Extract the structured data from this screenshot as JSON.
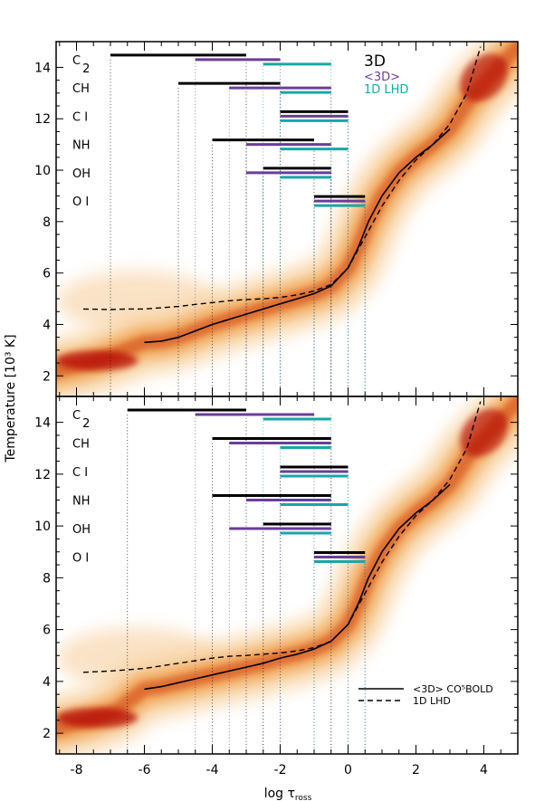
{
  "chart_data": {
    "type": "line",
    "xlabel": "log τ",
    "xlabel_sub": "ross",
    "ylabel": "Temperature [10³ K]",
    "xlim": [
      -8.6,
      5.0
    ],
    "ylim": [
      1.2,
      15.0
    ],
    "x_ticks": [
      -8,
      -6,
      -4,
      -2,
      0,
      2,
      4
    ],
    "y_ticks": [
      2,
      4,
      6,
      8,
      10,
      12,
      14
    ],
    "colors": {
      "3D": "#000000",
      "<3D>": "#6a3d9a",
      "1D LHD": "#1aa6a6",
      "density": "#b00000"
    },
    "panels": [
      {
        "id": "top",
        "legend": [
          "3D",
          "<3D>",
          "1D LHD"
        ],
        "species": [
          {
            "label": "C",
            "sub": "2",
            "y": 14.3,
            "ranges": [
              {
                "model": "3D",
                "x": [
                  -7.0,
                  -3.0
                ]
              },
              {
                "model": "<3D>",
                "x": [
                  -4.5,
                  -2.0
                ]
              },
              {
                "model": "1D LHD",
                "x": [
                  -2.5,
                  -0.5
                ]
              }
            ]
          },
          {
            "label": "CH",
            "sub": "",
            "y": 13.2,
            "ranges": [
              {
                "model": "3D",
                "x": [
                  -5.0,
                  -2.0
                ]
              },
              {
                "model": "<3D>",
                "x": [
                  -3.5,
                  -0.5
                ]
              },
              {
                "model": "1D LHD",
                "x": [
                  -2.0,
                  -0.5
                ]
              }
            ]
          },
          {
            "label": "C I",
            "sub": "",
            "y": 12.1,
            "ranges": [
              {
                "model": "3D",
                "x": [
                  -2.0,
                  0.0
                ]
              },
              {
                "model": "<3D>",
                "x": [
                  -2.0,
                  0.0
                ]
              },
              {
                "model": "1D LHD",
                "x": [
                  -2.0,
                  0.0
                ]
              }
            ]
          },
          {
            "label": "NH",
            "sub": "",
            "y": 11.0,
            "ranges": [
              {
                "model": "3D",
                "x": [
                  -4.0,
                  -1.0
                ]
              },
              {
                "model": "<3D>",
                "x": [
                  -3.0,
                  -0.5
                ]
              },
              {
                "model": "1D LHD",
                "x": [
                  -2.0,
                  0.0
                ]
              }
            ]
          },
          {
            "label": "OH",
            "sub": "",
            "y": 9.9,
            "ranges": [
              {
                "model": "3D",
                "x": [
                  -2.5,
                  -0.5
                ]
              },
              {
                "model": "<3D>",
                "x": [
                  -3.0,
                  -0.5
                ]
              },
              {
                "model": "1D LHD",
                "x": [
                  -2.0,
                  -0.5
                ]
              }
            ]
          },
          {
            "label": "O I",
            "sub": "",
            "y": 8.8,
            "ranges": [
              {
                "model": "3D",
                "x": [
                  -1.0,
                  0.5
                ]
              },
              {
                "model": "<3D>",
                "x": [
                  -1.0,
                  0.5
                ]
              },
              {
                "model": "1D LHD",
                "x": [
                  -1.0,
                  0.5
                ]
              }
            ]
          }
        ],
        "mean_3d": {
          "x": [
            -6,
            -5.5,
            -5,
            -4.5,
            -4,
            -3.5,
            -3,
            -2.5,
            -2,
            -1.5,
            -1,
            -0.5,
            0,
            0.3,
            0.6,
            1.0,
            1.5,
            2.0,
            2.5,
            3.0
          ],
          "y": [
            3.3,
            3.35,
            3.5,
            3.75,
            4.0,
            4.2,
            4.4,
            4.6,
            4.8,
            5.0,
            5.2,
            5.5,
            6.2,
            7.0,
            8.0,
            9.0,
            9.9,
            10.5,
            11.0,
            11.6
          ]
        },
        "lhd_1d": {
          "x": [
            -7.8,
            -7,
            -6.5,
            -6,
            -5.5,
            -5,
            -4.5,
            -4,
            -3.5,
            -3,
            -2.5,
            -2,
            -1.5,
            -1,
            -0.5,
            0,
            0.5,
            1,
            1.5,
            2,
            2.5,
            3,
            3.5,
            3.9
          ],
          "y": [
            4.6,
            4.58,
            4.6,
            4.6,
            4.65,
            4.7,
            4.78,
            4.85,
            4.92,
            4.97,
            5.0,
            5.05,
            5.15,
            5.3,
            5.55,
            6.2,
            7.4,
            8.6,
            9.6,
            10.4,
            11.0,
            11.8,
            13.0,
            14.8
          ]
        }
      },
      {
        "id": "bottom",
        "legend": [
          "<3D> CO⁵BOLD",
          "1D LHD"
        ],
        "species": [
          {
            "label": "C",
            "sub": "2",
            "y": 14.3,
            "ranges": [
              {
                "model": "3D",
                "x": [
                  -6.5,
                  -3.0
                ]
              },
              {
                "model": "<3D>",
                "x": [
                  -4.5,
                  -1.0
                ]
              },
              {
                "model": "1D LHD",
                "x": [
                  -2.5,
                  -0.5
                ]
              }
            ]
          },
          {
            "label": "CH",
            "sub": "",
            "y": 13.2,
            "ranges": [
              {
                "model": "3D",
                "x": [
                  -4.0,
                  -0.5
                ]
              },
              {
                "model": "<3D>",
                "x": [
                  -3.5,
                  -0.5
                ]
              },
              {
                "model": "1D LHD",
                "x": [
                  -2.0,
                  -0.5
                ]
              }
            ]
          },
          {
            "label": "C I",
            "sub": "",
            "y": 12.1,
            "ranges": [
              {
                "model": "3D",
                "x": [
                  -2.0,
                  0.0
                ]
              },
              {
                "model": "<3D>",
                "x": [
                  -2.0,
                  0.0
                ]
              },
              {
                "model": "1D LHD",
                "x": [
                  -2.0,
                  0.0
                ]
              }
            ]
          },
          {
            "label": "NH",
            "sub": "",
            "y": 11.0,
            "ranges": [
              {
                "model": "3D",
                "x": [
                  -4.0,
                  -0.5
                ]
              },
              {
                "model": "<3D>",
                "x": [
                  -3.0,
                  -0.5
                ]
              },
              {
                "model": "1D LHD",
                "x": [
                  -2.0,
                  0.0
                ]
              }
            ]
          },
          {
            "label": "OH",
            "sub": "",
            "y": 9.9,
            "ranges": [
              {
                "model": "3D",
                "x": [
                  -2.5,
                  -0.5
                ]
              },
              {
                "model": "<3D>",
                "x": [
                  -3.5,
                  -0.5
                ]
              },
              {
                "model": "1D LHD",
                "x": [
                  -2.0,
                  -0.5
                ]
              }
            ]
          },
          {
            "label": "O I",
            "sub": "",
            "y": 8.8,
            "ranges": [
              {
                "model": "3D",
                "x": [
                  -1.0,
                  0.5
                ]
              },
              {
                "model": "<3D>",
                "x": [
                  -1.0,
                  0.5
                ]
              },
              {
                "model": "1D LHD",
                "x": [
                  -1.0,
                  0.5
                ]
              }
            ]
          }
        ],
        "mean_3d": {
          "x": [
            -6,
            -5.5,
            -5,
            -4.5,
            -4,
            -3.5,
            -3,
            -2.5,
            -2,
            -1.5,
            -1,
            -0.5,
            0,
            0.3,
            0.6,
            1.0,
            1.5,
            2.0,
            2.5,
            3.0
          ],
          "y": [
            3.7,
            3.8,
            3.95,
            4.1,
            4.25,
            4.4,
            4.55,
            4.7,
            4.9,
            5.05,
            5.25,
            5.55,
            6.2,
            7.0,
            8.0,
            9.0,
            9.9,
            10.5,
            11.0,
            11.6
          ]
        },
        "lhd_1d": {
          "x": [
            -7.8,
            -7,
            -6.5,
            -6,
            -5.5,
            -5,
            -4.5,
            -4,
            -3.5,
            -3,
            -2.5,
            -2,
            -1.5,
            -1,
            -0.5,
            0,
            0.5,
            1,
            1.5,
            2,
            2.5,
            3,
            3.5,
            3.9
          ],
          "y": [
            4.35,
            4.4,
            4.45,
            4.5,
            4.6,
            4.7,
            4.8,
            4.9,
            4.97,
            5.0,
            5.05,
            5.1,
            5.18,
            5.3,
            5.55,
            6.2,
            7.4,
            8.6,
            9.6,
            10.4,
            11.0,
            11.8,
            13.0,
            14.8
          ]
        }
      }
    ]
  }
}
